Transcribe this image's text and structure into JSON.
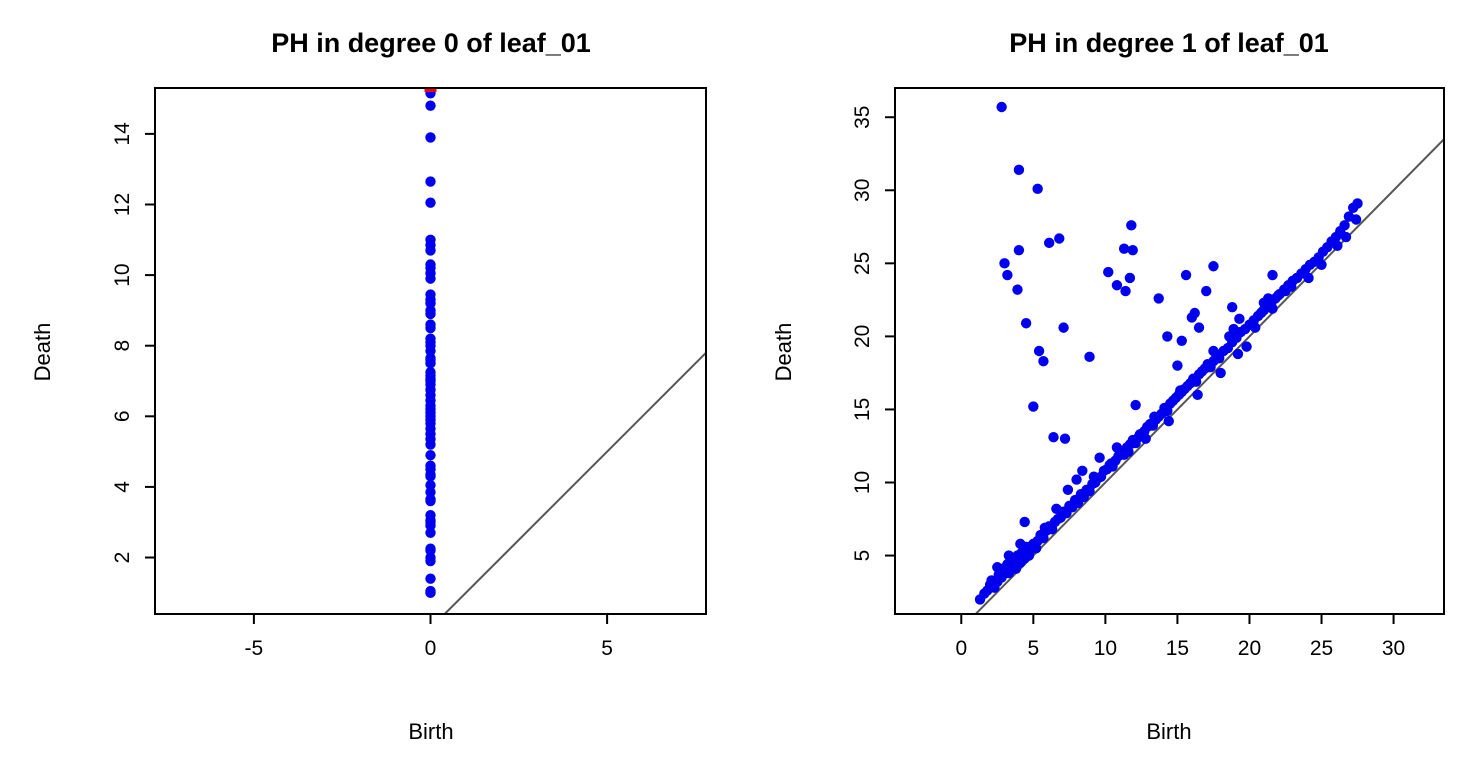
{
  "chart_data": [
    {
      "type": "scatter",
      "title": "PH in degree 0 of leaf_01",
      "xlabel": "Birth",
      "ylabel": "Death",
      "xlim": [
        -7.8,
        7.8
      ],
      "ylim": [
        0.4,
        15.3
      ],
      "xticks": [
        -5,
        0,
        5
      ],
      "yticks": [
        2,
        4,
        6,
        8,
        10,
        12,
        14
      ],
      "diagonal_line": true,
      "grid": false,
      "colors": {
        "points": "#0000ee",
        "infinite": "#ff0000",
        "diagonal": "#555555"
      },
      "series": [
        {
          "x": [
            0,
            0,
            0,
            0,
            0,
            0,
            0,
            0,
            0,
            0,
            0,
            0,
            0,
            0,
            0,
            0,
            0,
            0,
            0,
            0,
            0,
            0,
            0,
            0,
            0,
            0,
            0,
            0,
            0,
            0,
            0,
            0,
            0,
            0,
            0,
            0,
            0,
            0,
            0,
            0,
            0,
            0,
            0,
            0,
            0,
            0,
            0,
            0,
            0,
            0,
            0,
            0,
            0,
            0,
            0,
            0,
            0,
            0,
            0,
            0,
            0,
            0,
            0,
            0,
            0,
            0
          ],
          "y": [
            1.0,
            1.05,
            1.4,
            1.9,
            2.0,
            2.2,
            2.25,
            2.7,
            2.9,
            3.0,
            3.05,
            3.2,
            3.6,
            3.65,
            3.85,
            4.05,
            4.3,
            4.35,
            4.5,
            4.6,
            4.9,
            5.2,
            5.35,
            5.5,
            5.65,
            5.8,
            5.9,
            6.0,
            6.1,
            6.2,
            6.3,
            6.45,
            6.6,
            6.75,
            6.9,
            7.0,
            7.05,
            7.15,
            7.25,
            7.5,
            7.6,
            7.65,
            7.85,
            8.0,
            8.1,
            8.2,
            8.5,
            8.6,
            8.9,
            9.0,
            9.2,
            9.3,
            9.45,
            9.9,
            10.05,
            10.2,
            10.3,
            10.7,
            10.85,
            11.0,
            12.05,
            12.65,
            13.9,
            14.8,
            15.15,
            15.25
          ]
        },
        {
          "x": [
            0
          ],
          "y": [
            15.3
          ]
        }
      ]
    },
    {
      "type": "scatter",
      "title": "PH in degree 1 of leaf_01",
      "xlabel": "Birth",
      "ylabel": "Death",
      "xlim": [
        -4.6,
        33.5
      ],
      "ylim": [
        1.0,
        37.0
      ],
      "xticks": [
        0,
        5,
        10,
        15,
        20,
        25,
        30
      ],
      "yticks": [
        5,
        10,
        15,
        20,
        25,
        30,
        35
      ],
      "diagonal_line": true,
      "grid": false,
      "colors": {
        "points": "#0000ee",
        "diagonal": "#555555"
      },
      "series": [
        {
          "x": [
            2.8,
            4.0,
            5.3,
            6.8,
            6.1,
            11.8,
            3.0,
            3.2,
            4.0,
            3.9,
            11.3,
            10.2,
            11.9,
            10.8,
            11.4,
            11.7,
            4.5,
            7.1,
            5.4,
            5.7,
            8.9,
            5.0,
            6.4,
            7.2,
            12.1,
            13.7,
            15.6,
            17.0,
            17.5,
            21.6,
            18.8,
            16.2,
            16.0,
            16.5,
            14.3,
            15.3,
            15.0,
            17.5,
            18.6,
            1.3,
            1.6,
            1.8,
            2.0,
            2.1,
            2.3,
            2.5,
            2.6,
            2.8,
            2.9,
            3.0,
            3.2,
            3.3,
            3.5,
            3.6,
            3.8,
            3.9,
            4.1,
            4.2,
            4.4,
            4.5,
            4.7,
            4.8,
            5.0,
            5.1,
            5.3,
            5.5,
            5.7,
            5.9,
            6.1,
            6.3,
            6.5,
            6.7,
            6.9,
            7.1,
            7.3,
            7.5,
            7.7,
            7.9,
            8.1,
            8.3,
            8.5,
            8.7,
            8.9,
            9.1,
            9.3,
            9.5,
            9.7,
            9.9,
            10.1,
            10.3,
            10.5,
            10.7,
            10.9,
            11.1,
            11.3,
            11.5,
            11.7,
            11.9,
            12.1,
            12.3,
            12.5,
            12.7,
            12.9,
            13.1,
            13.3,
            13.5,
            13.7,
            13.9,
            14.1,
            14.3,
            14.5,
            14.7,
            14.9,
            15.1,
            15.3,
            15.5,
            15.7,
            15.9,
            16.1,
            16.3,
            16.5,
            16.7,
            16.9,
            17.1,
            17.3,
            17.5,
            17.7,
            17.9,
            18.2,
            18.5,
            18.8,
            19.1,
            19.4,
            19.7,
            20.0,
            20.3,
            20.6,
            20.9,
            21.2,
            21.5,
            21.8,
            22.1,
            22.4,
            22.7,
            23.0,
            23.3,
            23.6,
            23.9,
            24.2,
            24.5,
            24.8,
            25.1,
            25.4,
            25.7,
            26.0,
            26.3,
            26.6,
            26.9,
            27.2,
            27.5,
            2.5,
            3.3,
            4.1,
            4.4,
            5.2,
            5.8,
            6.6,
            7.4,
            8.0,
            8.4,
            9.2,
            9.6,
            10.4,
            10.8,
            11.6,
            12.4,
            12.8,
            13.4,
            14.4,
            15.2,
            16.4,
            17.2,
            18.0,
            19.2,
            19.8,
            20.4,
            21.0,
            21.6,
            22.0,
            19.3,
            18.9,
            20.2,
            21.0,
            21.3,
            22.5,
            24.1,
            25.0,
            26.1,
            26.7,
            27.4,
            23.3,
            22.9,
            20.8,
            21.4
          ],
          "y": [
            35.7,
            31.4,
            30.1,
            26.7,
            26.4,
            27.6,
            25.0,
            24.2,
            25.9,
            23.2,
            26.0,
            24.4,
            25.9,
            23.5,
            23.1,
            24.0,
            20.9,
            20.6,
            19.0,
            18.3,
            18.6,
            15.2,
            13.1,
            13.0,
            15.3,
            22.6,
            24.2,
            23.1,
            24.8,
            24.2,
            22.0,
            21.6,
            21.3,
            20.6,
            20.0,
            19.7,
            18.0,
            19.0,
            20.0,
            2.0,
            2.4,
            2.6,
            3.0,
            3.3,
            2.8,
            3.2,
            3.7,
            3.5,
            4.1,
            3.9,
            4.4,
            3.8,
            4.2,
            4.8,
            4.1,
            5.0,
            4.5,
            5.2,
            4.8,
            5.6,
            5.0,
            5.4,
            5.8,
            5.5,
            6.0,
            6.4,
            6.2,
            6.7,
            7.0,
            6.8,
            7.3,
            7.5,
            7.6,
            8.0,
            7.9,
            8.4,
            8.3,
            8.8,
            8.6,
            9.2,
            9.0,
            9.5,
            9.4,
            9.9,
            10.0,
            10.3,
            10.4,
            10.8,
            10.9,
            11.2,
            11.1,
            11.5,
            11.8,
            12.0,
            11.9,
            12.4,
            12.6,
            12.9,
            12.7,
            13.1,
            13.3,
            13.5,
            13.8,
            14.0,
            13.9,
            14.3,
            14.5,
            14.7,
            15.1,
            14.9,
            15.4,
            15.6,
            15.8,
            16.0,
            16.2,
            16.4,
            16.6,
            16.8,
            17.1,
            16.9,
            17.4,
            17.6,
            17.8,
            18.1,
            17.9,
            18.3,
            18.6,
            18.5,
            19.0,
            19.2,
            19.6,
            19.9,
            20.3,
            20.5,
            20.8,
            21.1,
            21.4,
            21.7,
            22.0,
            22.2,
            22.6,
            22.9,
            23.2,
            23.5,
            23.8,
            24.0,
            24.3,
            24.6,
            24.9,
            25.1,
            25.4,
            25.8,
            26.1,
            26.5,
            26.8,
            27.2,
            27.6,
            28.2,
            28.8,
            29.1,
            4.2,
            5.0,
            5.8,
            7.3,
            5.5,
            6.9,
            8.2,
            9.5,
            10.2,
            10.8,
            10.4,
            11.7,
            11.3,
            12.4,
            12.1,
            13.3,
            13.0,
            14.5,
            14.2,
            16.3,
            16.0,
            17.9,
            17.5,
            18.8,
            19.3,
            20.6,
            21.8,
            21.9,
            22.8,
            21.2,
            20.5,
            20.9,
            22.3,
            22.6,
            23.1,
            24.0,
            24.9,
            26.2,
            26.8,
            28.0,
            24.0,
            23.4,
            21.6,
            22.4
          ]
        }
      ]
    }
  ]
}
